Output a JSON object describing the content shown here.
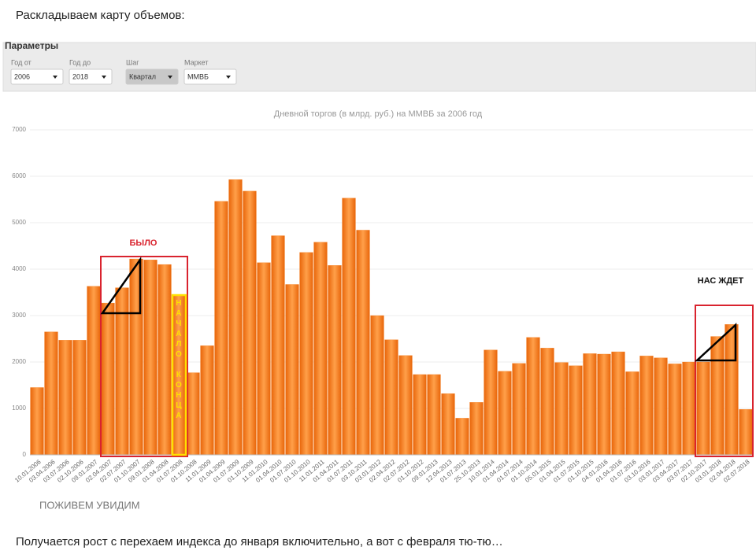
{
  "heading": "Раскладываем карту объемов:",
  "params": {
    "title": "Параметры",
    "fields": [
      {
        "label": "Год от",
        "value": "2006"
      },
      {
        "label": "Год до",
        "value": "2018"
      },
      {
        "label": "Шаг",
        "value": "Квартал"
      },
      {
        "label": "Маркет",
        "value": "ММВБ"
      }
    ]
  },
  "chart_data": {
    "type": "bar",
    "title": "Дневной  торгов (в млрд. руб.) на ММВБ за 2006 год",
    "categories": [
      "10.01.2006",
      "03.04.2006",
      "03.07.2006",
      "02.10.2006",
      "09.01.2007",
      "02.04.2007",
      "02.07.2007",
      "01.10.2007",
      "09.01.2008",
      "01.04.2008",
      "01.07.2008",
      "01.10.2008",
      "11.01.2009",
      "01.04.2009",
      "01.07.2009",
      "01.10.2009",
      "11.01.2010",
      "01.04.2010",
      "01.07.2010",
      "01.10.2010",
      "11.01.2011",
      "01.04.2011",
      "01.07.2011",
      "03.10.2011",
      "03.01.2012",
      "02.04.2012",
      "02.07.2012",
      "01.10.2012",
      "09.01.2013",
      "12.04.2013",
      "01.07.2013",
      "25.10.2013",
      "10.01.2014",
      "01.04.2014",
      "01.07.2014",
      "01.10.2014",
      "05.01.2015",
      "01.04.2015",
      "01.07.2015",
      "01.10.2015",
      "04.01.2016",
      "01.04.2016",
      "01.07.2016",
      "03.10.2016",
      "03.01.2017",
      "03.04.2017",
      "03.07.2017",
      "02.10.2017",
      "03.01.2018",
      "02.04.2018",
      "02.07.2018"
    ],
    "values": [
      1450,
      2650,
      2470,
      2470,
      3630,
      3270,
      3600,
      4220,
      4200,
      4100,
      3450,
      1770,
      2350,
      5460,
      5930,
      5680,
      4140,
      4720,
      3670,
      4360,
      4580,
      4080,
      5530,
      4840,
      3000,
      2480,
      2140,
      1730,
      1730,
      1320,
      790,
      1130,
      2260,
      1800,
      1970,
      2530,
      2300,
      1990,
      1920,
      2180,
      2170,
      2220,
      1790,
      2130,
      2090,
      1960,
      2000,
      2000,
      2550,
      2810,
      980
    ],
    "color": "#f7801f",
    "ylim": [
      0,
      7000
    ],
    "yticks": [
      0,
      1000,
      2000,
      3000,
      4000,
      5000,
      6000,
      7000
    ],
    "grid": true,
    "annotations": [
      "БЫЛО",
      "НАС ЖДЕТ",
      "НАЧАЛО КОНЦА"
    ]
  },
  "caption": "ПОЖИВЕМ УВИДИМ",
  "footer": "Получается рост с перехаем индекса до января включительно, а вот с февраля тю-тю…"
}
